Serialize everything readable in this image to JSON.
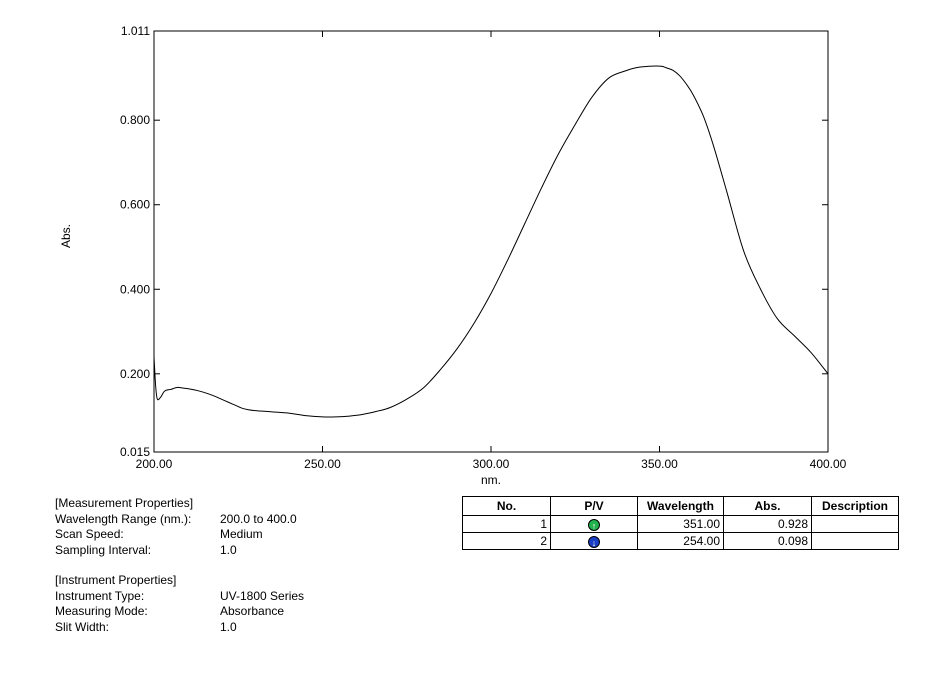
{
  "chart_data": {
    "type": "line",
    "xlabel": "nm.",
    "ylabel": "Abs.",
    "xlim": [
      200.0,
      400.0
    ],
    "ylim": [
      0.015,
      1.011
    ],
    "x_ticks": [
      "200.00",
      "250.00",
      "300.00",
      "350.00",
      "400.00"
    ],
    "y_ticks": [
      "1.011",
      "0.800",
      "0.600",
      "0.400",
      "0.200",
      "0.015"
    ],
    "grid": false,
    "series": [
      {
        "x": [
          200,
          200.5,
          201,
          202,
          203,
          204,
          205,
          206,
          207,
          208,
          210,
          212,
          214,
          216,
          218,
          220,
          222,
          224,
          226,
          228,
          230,
          235,
          240,
          245,
          250,
          254,
          258,
          262,
          266,
          270,
          275,
          280,
          285,
          290,
          295,
          300,
          305,
          310,
          315,
          320,
          325,
          330,
          335,
          340,
          343,
          346,
          348,
          350,
          351,
          352,
          354,
          356,
          358,
          360,
          363,
          366,
          370,
          375,
          380,
          385,
          390,
          395,
          400
        ],
        "y": [
          0.24,
          0.17,
          0.14,
          0.145,
          0.158,
          0.162,
          0.163,
          0.166,
          0.168,
          0.167,
          0.165,
          0.162,
          0.158,
          0.153,
          0.147,
          0.14,
          0.133,
          0.126,
          0.119,
          0.115,
          0.113,
          0.11,
          0.107,
          0.101,
          0.098,
          0.098,
          0.1,
          0.104,
          0.111,
          0.12,
          0.14,
          0.167,
          0.21,
          0.26,
          0.32,
          0.39,
          0.47,
          0.555,
          0.64,
          0.72,
          0.79,
          0.855,
          0.9,
          0.917,
          0.924,
          0.927,
          0.928,
          0.928,
          0.927,
          0.924,
          0.918,
          0.905,
          0.885,
          0.86,
          0.81,
          0.74,
          0.63,
          0.49,
          0.4,
          0.33,
          0.29,
          0.25,
          0.2
        ]
      }
    ]
  },
  "measurement": {
    "heading": "[Measurement Properties]",
    "rows": [
      {
        "label": "Wavelength Range (nm.):",
        "value": "200.0 to 400.0"
      },
      {
        "label": "Scan Speed:",
        "value": "Medium"
      },
      {
        "label": "Sampling Interval:",
        "value": "1.0"
      }
    ]
  },
  "instrument": {
    "heading": "[Instrument Properties]",
    "rows": [
      {
        "label": "Instrument Type:",
        "value": "UV-1800 Series"
      },
      {
        "label": "Measuring Mode:",
        "value": "Absorbance"
      },
      {
        "label": "Slit Width:",
        "value": "1.0"
      }
    ]
  },
  "peak_table": {
    "headers": [
      "No.",
      "P/V",
      "Wavelength",
      "Abs.",
      "Description"
    ],
    "rows": [
      {
        "no": "1",
        "pv": "peak",
        "pv_icon": "up-arrow-icon",
        "pv_color": "#22b14c",
        "wavelength": "351.00",
        "abs": "0.928",
        "description": ""
      },
      {
        "no": "2",
        "pv": "valley",
        "pv_icon": "down-arrow-icon",
        "pv_color": "#1a3ec4",
        "wavelength": "254.00",
        "abs": "0.098",
        "description": ""
      }
    ]
  }
}
